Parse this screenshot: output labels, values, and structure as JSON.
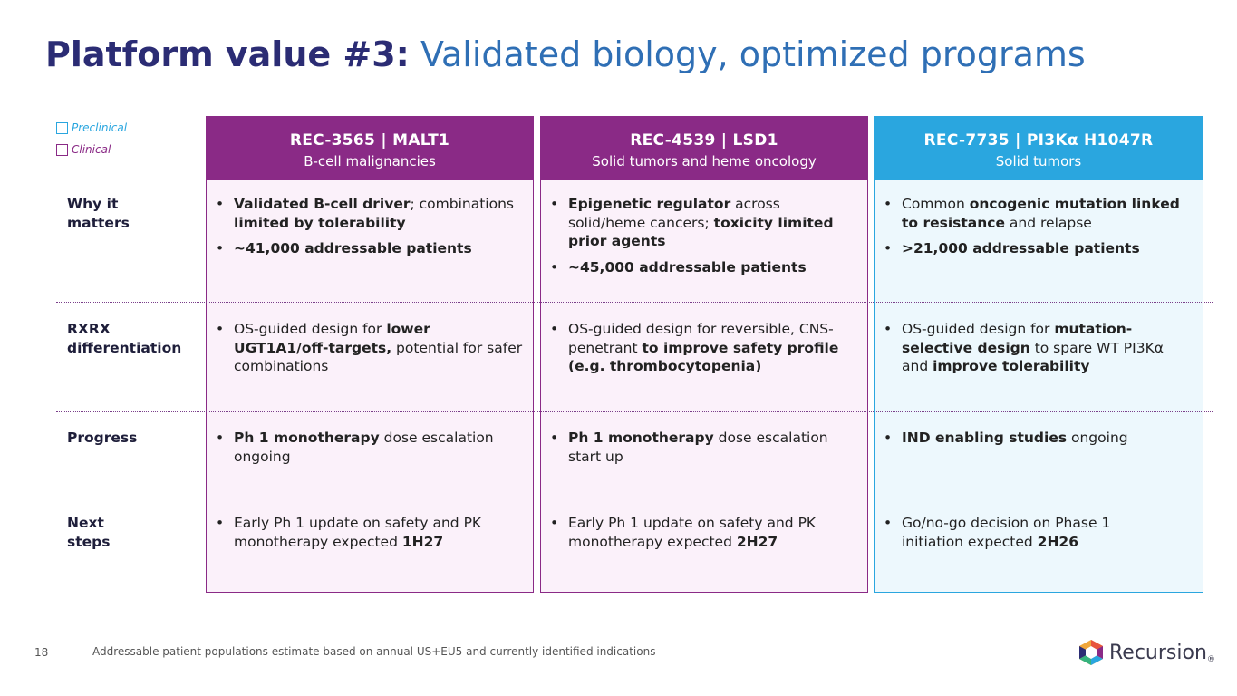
{
  "title": {
    "lead": "Platform value #3:",
    "rest": "Validated biology, optimized programs"
  },
  "legend": {
    "preclinical": "Preclinical",
    "clinical": "Clinical"
  },
  "programs": [
    {
      "name": "REC-3565 | MALT1",
      "indication": "B-cell malignancies"
    },
    {
      "name": "REC-4539 | LSD1",
      "indication": "Solid tumors and heme oncology"
    },
    {
      "name": "REC-7735 | PI3Kα H1047R",
      "indication": "Solid tumors"
    }
  ],
  "rows": [
    {
      "label": "Why it matters",
      "cells": [
        [
          [
            [
              "Validated B-cell driver",
              true
            ],
            [
              "; combinations ",
              false
            ],
            [
              "limited by tolerability",
              true
            ]
          ],
          [
            [
              "~41,000 addressable patients",
              true
            ]
          ]
        ],
        [
          [
            [
              "Epigenetic regulator",
              true
            ],
            [
              " across solid/heme cancers; ",
              false
            ],
            [
              "toxicity limited prior agents",
              true
            ]
          ],
          [
            [
              "~45,000 addressable patients",
              true
            ]
          ]
        ],
        [
          [
            [
              "Common ",
              false
            ],
            [
              "oncogenic mutation linked to resistance",
              true
            ],
            [
              " and relapse",
              false
            ]
          ],
          [
            [
              ">21,000 addressable patients",
              true
            ]
          ]
        ]
      ]
    },
    {
      "label": "RXRX differentiation",
      "cells": [
        [
          [
            [
              "OS-guided design for ",
              false
            ],
            [
              "lower UGT1A1/off-targets,",
              true
            ],
            [
              " potential for safer combinations",
              false
            ]
          ]
        ],
        [
          [
            [
              "OS-guided design for reversible, CNS-penetrant ",
              false
            ],
            [
              "to improve safety profile (e.g. thrombocytopenia)",
              true
            ]
          ]
        ],
        [
          [
            [
              "OS-guided design for ",
              false
            ],
            [
              "mutation-selective design",
              true
            ],
            [
              " to spare WT PI3Kα and ",
              false
            ],
            [
              "improve tolerability",
              true
            ]
          ]
        ]
      ]
    },
    {
      "label": "Progress",
      "cells": [
        [
          [
            [
              "Ph 1 monotherapy",
              true
            ],
            [
              " dose escalation ongoing",
              false
            ]
          ]
        ],
        [
          [
            [
              "Ph 1 monotherapy",
              true
            ],
            [
              " dose escalation start up",
              false
            ]
          ]
        ],
        [
          [
            [
              "IND enabling studies",
              true
            ],
            [
              " ongoing",
              false
            ]
          ]
        ]
      ]
    },
    {
      "label": "Next steps",
      "cells": [
        [
          [
            [
              "Early Ph 1 update on safety and PK monotherapy expected ",
              false
            ],
            [
              "1H27",
              true
            ]
          ]
        ],
        [
          [
            [
              "Early Ph 1 update on safety and PK monotherapy expected ",
              false
            ],
            [
              "2H27",
              true
            ]
          ]
        ],
        [
          [
            [
              "Go/no-go decision on Phase 1 initiation expected ",
              false
            ],
            [
              "2H26",
              true
            ]
          ]
        ]
      ]
    }
  ],
  "footer": {
    "page_number": "18",
    "note": "Addressable patient populations estimate based on annual US+EU5 and currently identified indications"
  },
  "logo": {
    "word": "Recursion",
    "mark": "®",
    "icon": "recursion-hexagon-icon"
  },
  "colors": {
    "clinical": "#8a2a86",
    "preclinical": "#2aa6df",
    "title_dark": "#2b2c74",
    "title_blue": "#2f6fb5"
  }
}
